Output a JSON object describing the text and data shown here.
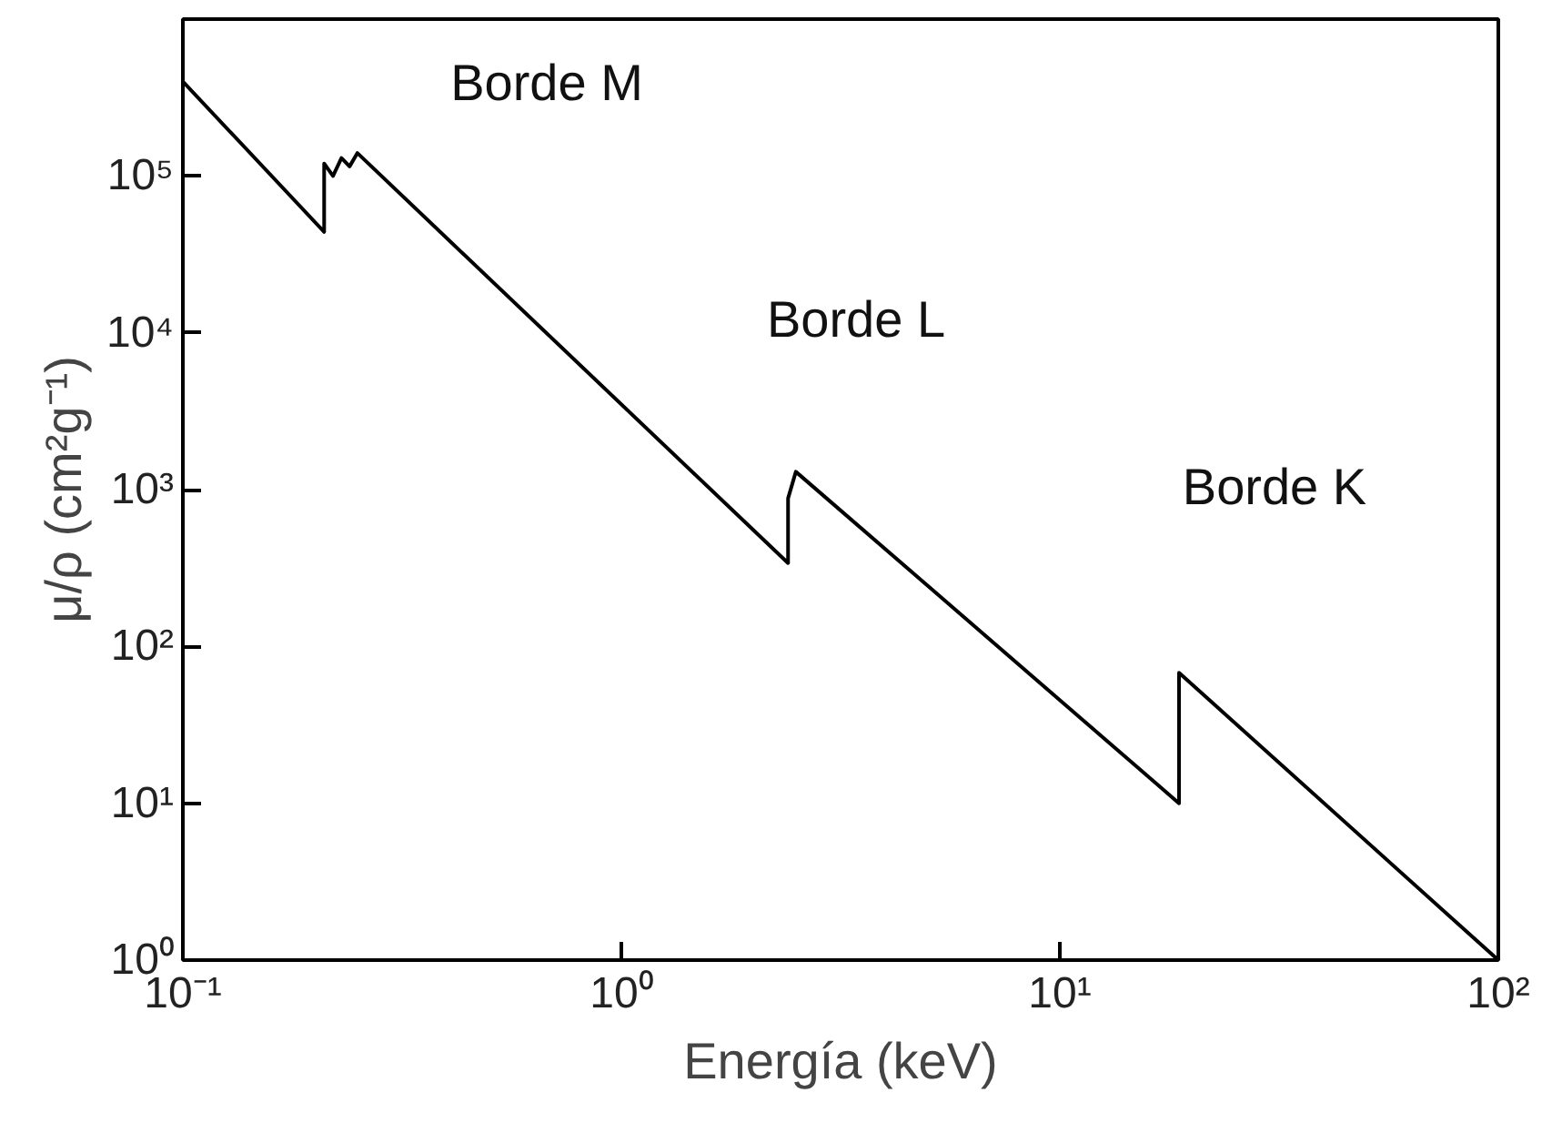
{
  "chart_data": {
    "type": "line",
    "xlabel": "Energía (keV)",
    "ylabel": "μ/ρ (cm²g⁻¹)",
    "log": "xy",
    "grid": false,
    "marker": "none",
    "line_style": "solid",
    "x": [
      0.1,
      0.21,
      0.21,
      0.22,
      0.23,
      0.24,
      0.25,
      2.4,
      2.4,
      2.5,
      18.7,
      18.7,
      100
    ],
    "series": [
      {
        "color": "#000000",
        "values": [
          400000,
          44000,
          120000,
          100000,
          130000,
          115000,
          140000,
          340,
          880,
          1300,
          10,
          68,
          1
        ]
      }
    ],
    "xlim": [
      0.1,
      100
    ],
    "ylim": [
      1,
      1000000
    ],
    "xticks": [
      {
        "value": 0.1,
        "label": "10⁻¹"
      },
      {
        "value": 1,
        "label": "10⁰"
      },
      {
        "value": 10,
        "label": "10¹"
      },
      {
        "value": 100,
        "label": "10²"
      }
    ],
    "yticks": [
      {
        "value": 1,
        "label": "10⁰"
      },
      {
        "value": 10,
        "label": "10¹"
      },
      {
        "value": 100,
        "label": "10²"
      },
      {
        "value": 1000,
        "label": "10³"
      },
      {
        "value": 10000,
        "label": "10⁴"
      },
      {
        "value": 100000,
        "label": "10⁵"
      }
    ],
    "annotations": [
      "Borde M",
      "Borde L",
      "Borde K"
    ]
  }
}
